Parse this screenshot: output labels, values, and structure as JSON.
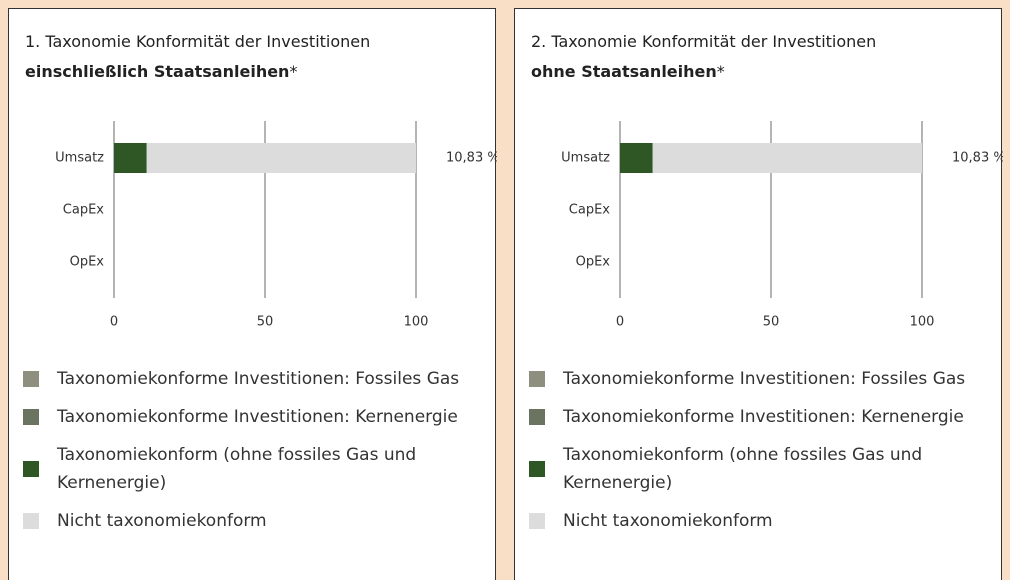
{
  "chart_data": [
    {
      "type": "bar",
      "orientation": "horizontal",
      "stacked": true,
      "title": "1. Taxonomie Konformität der Investitionen",
      "subtitle": "einschließlich Staatsanleihen",
      "subtitle_marker": "*",
      "categories": [
        "Umsatz",
        "CapEx",
        "OpEx"
      ],
      "series": [
        {
          "name": "Taxonomiekonforme Investitionen: Fossiles Gas",
          "color": "#8f8f80",
          "values": [
            null,
            null,
            null
          ]
        },
        {
          "name": "Taxonomiekonforme Investitionen: Kernenergie",
          "color": "#6b7461",
          "values": [
            null,
            null,
            null
          ]
        },
        {
          "name": "Taxonomiekonform (ohne fossiles Gas und Kernenergie)",
          "color": "#2f5726",
          "values": [
            10.83,
            null,
            null
          ],
          "value_labels": [
            "10,83 %",
            null,
            null
          ]
        },
        {
          "name": "Nicht taxonomiekonform",
          "color": "#dcdcdc",
          "values": [
            89.17,
            null,
            null
          ]
        }
      ],
      "xlim": [
        0,
        100
      ],
      "xticks": [
        0,
        50,
        100
      ],
      "grid": true
    },
    {
      "type": "bar",
      "orientation": "horizontal",
      "stacked": true,
      "title": "2. Taxonomie Konformität der Investitionen",
      "subtitle": "ohne Staatsanleihen",
      "subtitle_marker": "*",
      "categories": [
        "Umsatz",
        "CapEx",
        "OpEx"
      ],
      "series": [
        {
          "name": "Taxonomiekonforme Investitionen: Fossiles Gas",
          "color": "#8f8f80",
          "values": [
            null,
            null,
            null
          ]
        },
        {
          "name": "Taxonomiekonforme Investitionen: Kernenergie",
          "color": "#6b7461",
          "values": [
            null,
            null,
            null
          ]
        },
        {
          "name": "Taxonomiekonform (ohne fossiles Gas und Kernenergie)",
          "color": "#2f5726",
          "values": [
            10.83,
            null,
            null
          ],
          "value_labels": [
            "10,83 %",
            null,
            null
          ]
        },
        {
          "name": "Nicht taxonomiekonform",
          "color": "#dcdcdc",
          "values": [
            89.17,
            null,
            null
          ]
        }
      ],
      "xlim": [
        0,
        100
      ],
      "xticks": [
        0,
        50,
        100
      ],
      "grid": true
    }
  ]
}
